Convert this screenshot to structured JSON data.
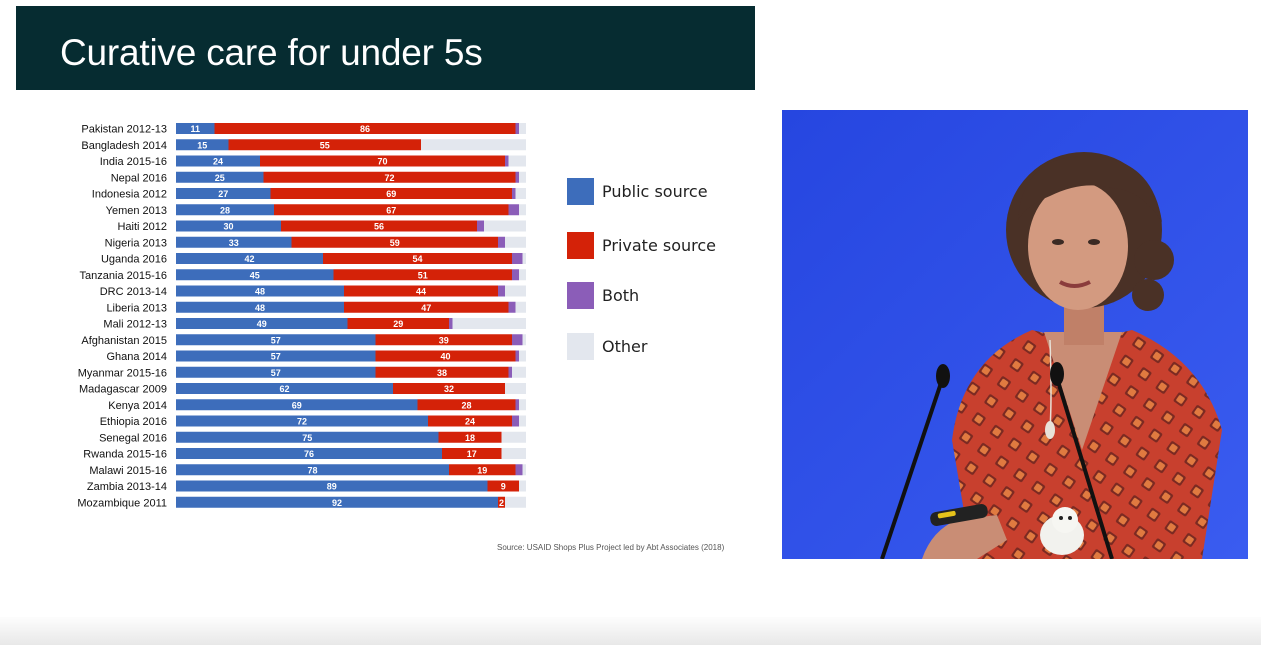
{
  "slide": {
    "title": "Curative care for under 5s",
    "source": "Source: USAID Shops Plus Project led by Abt Associates (2018)"
  },
  "colors": {
    "title_bg": "#062c31",
    "public": "#3d6dbb",
    "private": "#d42208",
    "both": "#8b5db8",
    "other": "#e3e7ee",
    "video_bg": "#2f52e8"
  },
  "legend": [
    {
      "label": "Public source",
      "color": "#3d6dbb"
    },
    {
      "label": "Private source",
      "color": "#d42208"
    },
    {
      "label": "Both",
      "color": "#8b5db8"
    },
    {
      "label": "Other",
      "color": "#e3e7ee"
    }
  ],
  "chart_data": {
    "type": "bar",
    "orientation": "horizontal",
    "stacked": true,
    "categories": [
      "Pakistan 2012-13",
      "Bangladesh 2014",
      "India 2015-16",
      "Nepal 2016",
      "Indonesia 2012",
      "Yemen 2013",
      "Haiti 2012",
      "Nigeria 2013",
      "Uganda 2016",
      "Tanzania 2015-16",
      "DRC 2013-14",
      "Liberia 2013",
      "Mali 2012-13",
      "Afghanistan 2015",
      "Ghana 2014",
      "Myanmar 2015-16",
      "Madagascar 2009",
      "Kenya 2014",
      "Ethiopia 2016",
      "Senegal 2016",
      "Rwanda 2015-16",
      "Malawi 2015-16",
      "Zambia 2013-14",
      "Mozambique 2011"
    ],
    "series": [
      {
        "name": "Public source",
        "values": [
          11,
          15,
          24,
          25,
          27,
          28,
          30,
          33,
          42,
          45,
          48,
          48,
          49,
          57,
          57,
          57,
          62,
          69,
          72,
          75,
          76,
          78,
          89,
          92
        ]
      },
      {
        "name": "Private source",
        "values": [
          86,
          55,
          70,
          72,
          69,
          67,
          56,
          59,
          54,
          51,
          44,
          47,
          29,
          39,
          40,
          38,
          32,
          28,
          24,
          18,
          17,
          19,
          9,
          2
        ]
      },
      {
        "name": "Both",
        "values": [
          1,
          0,
          1,
          1,
          1,
          3,
          2,
          2,
          3,
          2,
          2,
          2,
          1,
          3,
          1,
          1,
          0,
          1,
          2,
          0,
          0,
          2,
          0,
          0
        ]
      },
      {
        "name": "Other",
        "values": [
          2,
          30,
          5,
          2,
          3,
          2,
          12,
          6,
          1,
          2,
          6,
          3,
          21,
          1,
          2,
          4,
          6,
          2,
          2,
          7,
          7,
          1,
          2,
          6
        ]
      }
    ],
    "xlim": [
      0,
      100
    ]
  },
  "presenter_video": {}
}
